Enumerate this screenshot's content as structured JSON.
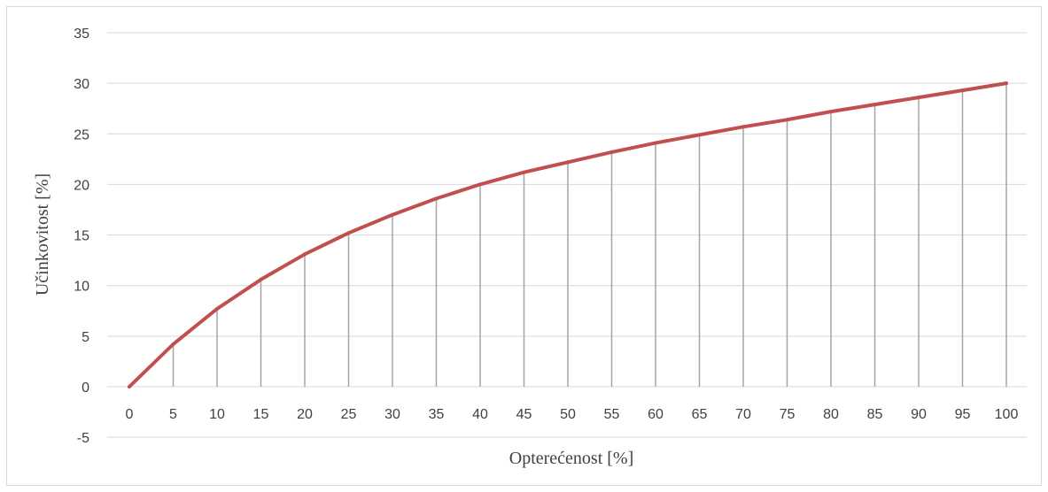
{
  "chart_data": {
    "type": "line",
    "title": "",
    "xlabel": "Opterećenost [%]",
    "ylabel": "Učinkovitost [%]",
    "x": [
      0,
      5,
      10,
      15,
      20,
      25,
      30,
      35,
      40,
      45,
      50,
      55,
      60,
      65,
      70,
      75,
      80,
      85,
      90,
      95,
      100
    ],
    "series": [
      {
        "values": [
          0,
          4.2,
          7.7,
          10.6,
          13.1,
          15.2,
          17.0,
          18.6,
          20.0,
          21.2,
          22.2,
          23.2,
          24.1,
          24.9,
          25.7,
          26.4,
          27.2,
          27.9,
          28.6,
          29.3,
          30.0
        ],
        "color": "#c0504d"
      }
    ],
    "ylim": [
      -5,
      35
    ],
    "yticks": [
      "-5",
      "0",
      "5",
      "10",
      "15",
      "20",
      "25",
      "30",
      "35"
    ],
    "xticks": [
      "0",
      "5",
      "10",
      "15",
      "20",
      "25",
      "30",
      "35",
      "40",
      "45",
      "50",
      "55",
      "60",
      "65",
      "70",
      "75",
      "80",
      "85",
      "90",
      "95",
      "100"
    ],
    "grid": "horizontal",
    "drop_lines": true,
    "legend": "none",
    "colors": {
      "line": "#c0504d",
      "gridline": "#d9d9d9",
      "dropline": "#a6a6a6",
      "border": "#d9d9d9",
      "text": "#404040"
    }
  }
}
